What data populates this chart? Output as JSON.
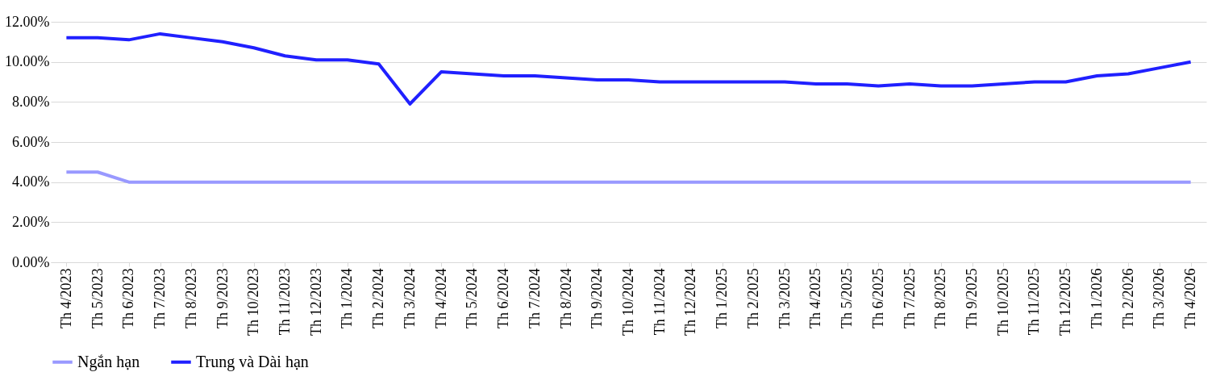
{
  "chart_data": {
    "type": "line",
    "categories": [
      "Th 4/2023",
      "Th 5/2023",
      "Th 6/2023",
      "Th 7/2023",
      "Th 8/2023",
      "Th 9/2023",
      "Th 10/2023",
      "Th 11/2023",
      "Th 12/2023",
      "Th 1/2024",
      "Th 2/2024",
      "Th 3/2024",
      "Th 4/2024",
      "Th 5/2024",
      "Th 6/2024",
      "Th 7/2024",
      "Th 8/2024",
      "Th 9/2024",
      "Th 10/2024",
      "Th 11/2024",
      "Th 12/2024",
      "Th 1/2025",
      "Th 2/2025",
      "Th 3/2025",
      "Th 4/2025",
      "Th 5/2025",
      "Th 6/2025",
      "Th 7/2025",
      "Th 8/2025",
      "Th 9/2025",
      "Th 10/2025",
      "Th 11/2025",
      "Th 12/2025",
      "Th 1/2026",
      "Th 2/2026",
      "Th 3/2026",
      "Th 4/2026"
    ],
    "series": [
      {
        "name": "Ngắn hạn",
        "color": "#9999ff",
        "values": [
          4.5,
          4.5,
          4.0,
          4.0,
          4.0,
          4.0,
          4.0,
          4.0,
          4.0,
          4.0,
          4.0,
          4.0,
          4.0,
          4.0,
          4.0,
          4.0,
          4.0,
          4.0,
          4.0,
          4.0,
          4.0,
          4.0,
          4.0,
          4.0,
          4.0,
          4.0,
          4.0,
          4.0,
          4.0,
          4.0,
          4.0,
          4.0,
          4.0,
          4.0,
          4.0,
          4.0,
          4.0
        ]
      },
      {
        "name": "Trung và Dài hạn",
        "color": "#2020ff",
        "values": [
          11.2,
          11.2,
          11.1,
          11.4,
          11.2,
          11.0,
          10.7,
          10.3,
          10.1,
          10.1,
          9.9,
          7.9,
          9.5,
          9.4,
          9.3,
          9.3,
          9.2,
          9.1,
          9.1,
          9.0,
          9.0,
          9.0,
          9.0,
          9.0,
          8.9,
          8.9,
          8.8,
          8.9,
          8.8,
          8.8,
          8.9,
          9.0,
          9.0,
          9.3,
          9.4,
          9.7,
          10.0
        ]
      }
    ],
    "ylim": [
      0,
      12
    ],
    "yticks": [
      {
        "value": 0,
        "label": "0.00%"
      },
      {
        "value": 2,
        "label": "2.00%"
      },
      {
        "value": 4,
        "label": "4.00%"
      },
      {
        "value": 6,
        "label": "6.00%"
      },
      {
        "value": 8,
        "label": "8.00%"
      },
      {
        "value": 10,
        "label": "10.00%"
      },
      {
        "value": 12,
        "label": "12.00%"
      }
    ],
    "grid": "y",
    "legend": "bottom",
    "marker": "none",
    "line_style": "solid"
  }
}
